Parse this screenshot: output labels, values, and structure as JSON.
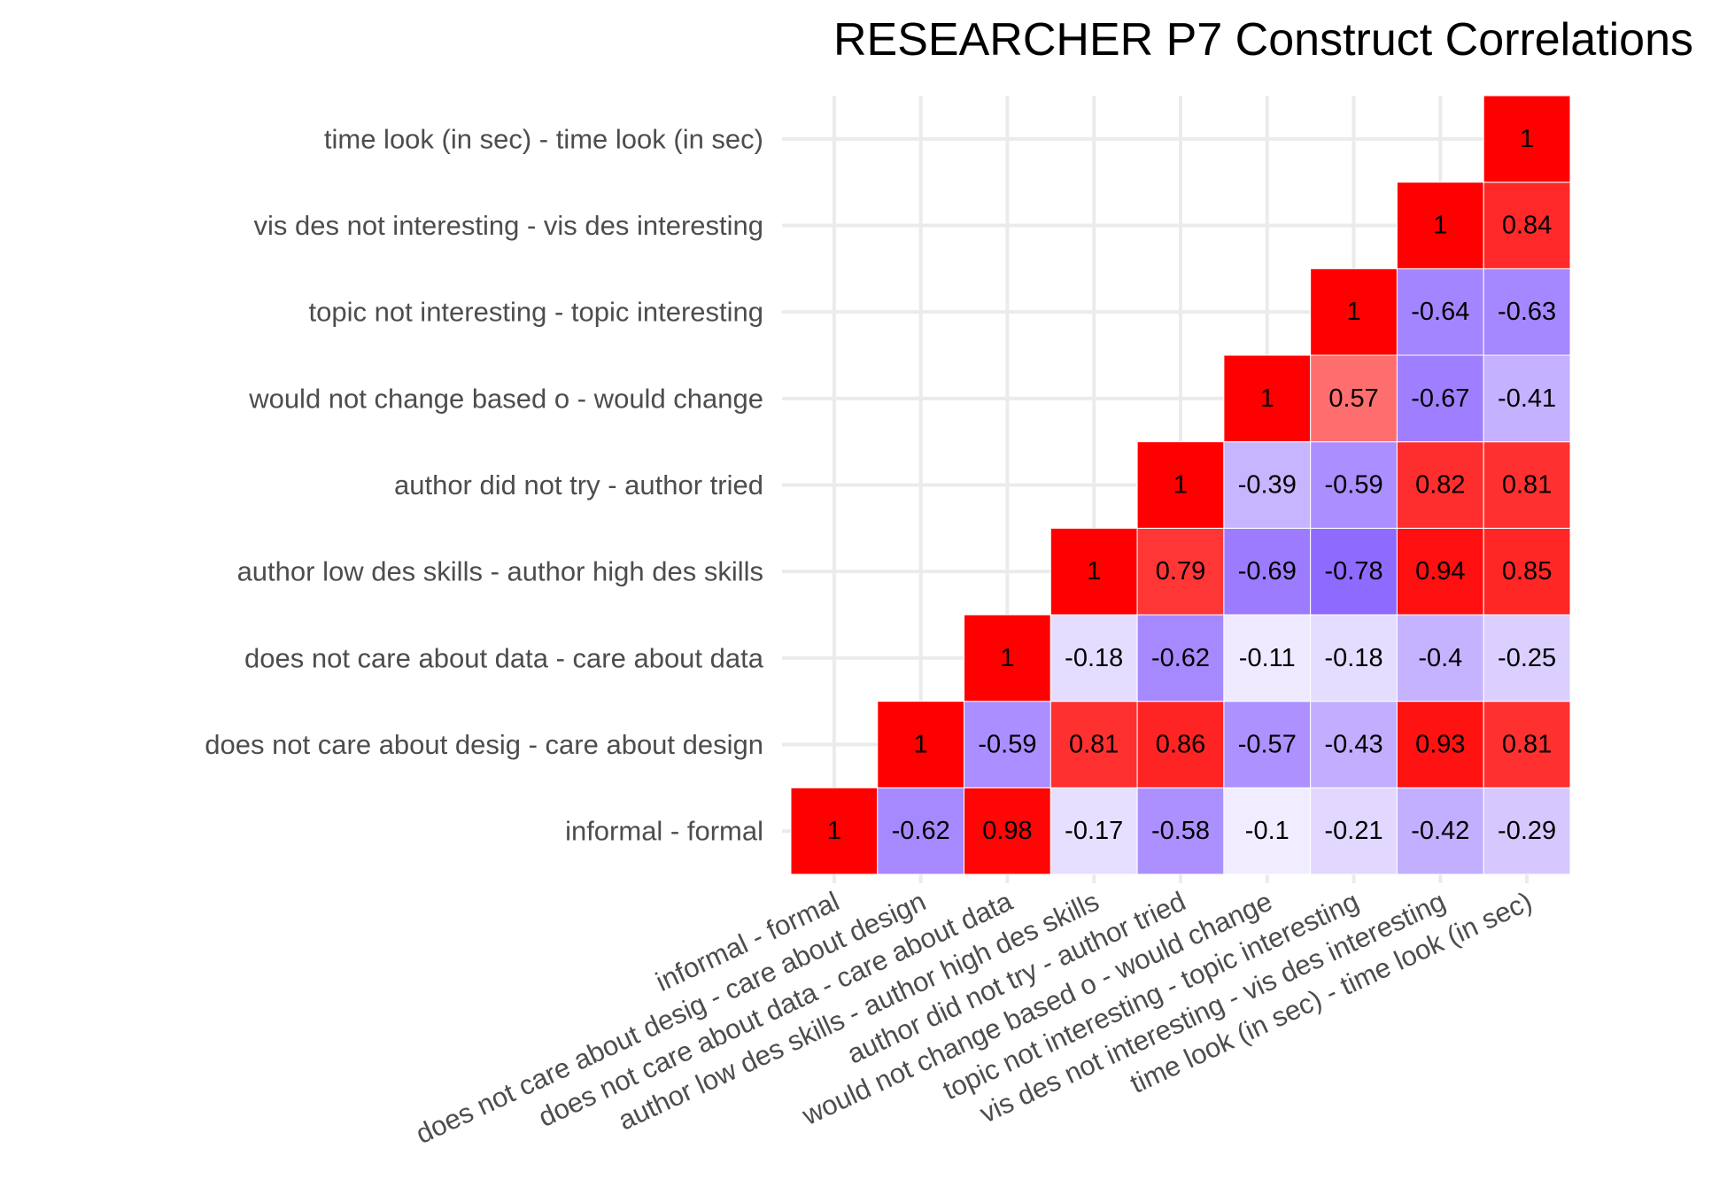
{
  "chart_data": {
    "type": "heatmap",
    "title": "RESEARCHER P7 Construct Correlations",
    "xlabel": "",
    "ylabel": "",
    "categories": [
      "informal - formal",
      "does not care about desig - care about design",
      "does not care about data - care about data",
      "author low des skills  - author high des skills",
      "author did not try - author tried",
      "would not  change based o - would  change",
      "topic not interesting - topic interesting",
      "vis des not interesting - vis des interesting",
      "time look (in sec) - time look (in sec)"
    ],
    "value_range": [
      -1,
      1
    ],
    "colors": {
      "negative": "#7040ff",
      "zero": "#ffffff",
      "positive": "#ff0000",
      "cell_border": "#ffffff"
    },
    "grid": true,
    "legend": "none",
    "cells": [
      {
        "x": 0,
        "y": 0,
        "value": 1,
        "label": "1"
      },
      {
        "x": 1,
        "y": 0,
        "value": -0.62,
        "label": "-0.62"
      },
      {
        "x": 2,
        "y": 0,
        "value": 0.98,
        "label": "0.98"
      },
      {
        "x": 3,
        "y": 0,
        "value": -0.17,
        "label": "-0.17"
      },
      {
        "x": 4,
        "y": 0,
        "value": -0.58,
        "label": "-0.58"
      },
      {
        "x": 5,
        "y": 0,
        "value": -0.1,
        "label": "-0.1"
      },
      {
        "x": 6,
        "y": 0,
        "value": -0.21,
        "label": "-0.21"
      },
      {
        "x": 7,
        "y": 0,
        "value": -0.42,
        "label": "-0.42"
      },
      {
        "x": 8,
        "y": 0,
        "value": -0.29,
        "label": "-0.29"
      },
      {
        "x": 1,
        "y": 1,
        "value": 1,
        "label": "1"
      },
      {
        "x": 2,
        "y": 1,
        "value": -0.59,
        "label": "-0.59"
      },
      {
        "x": 3,
        "y": 1,
        "value": 0.81,
        "label": "0.81"
      },
      {
        "x": 4,
        "y": 1,
        "value": 0.86,
        "label": "0.86"
      },
      {
        "x": 5,
        "y": 1,
        "value": -0.57,
        "label": "-0.57"
      },
      {
        "x": 6,
        "y": 1,
        "value": -0.43,
        "label": "-0.43"
      },
      {
        "x": 7,
        "y": 1,
        "value": 0.93,
        "label": "0.93"
      },
      {
        "x": 8,
        "y": 1,
        "value": 0.81,
        "label": "0.81"
      },
      {
        "x": 2,
        "y": 2,
        "value": 1,
        "label": "1"
      },
      {
        "x": 3,
        "y": 2,
        "value": -0.18,
        "label": "-0.18"
      },
      {
        "x": 4,
        "y": 2,
        "value": -0.62,
        "label": "-0.62"
      },
      {
        "x": 5,
        "y": 2,
        "value": -0.11,
        "label": "-0.11"
      },
      {
        "x": 6,
        "y": 2,
        "value": -0.18,
        "label": "-0.18"
      },
      {
        "x": 7,
        "y": 2,
        "value": -0.4,
        "label": "-0.4"
      },
      {
        "x": 8,
        "y": 2,
        "value": -0.25,
        "label": "-0.25"
      },
      {
        "x": 3,
        "y": 3,
        "value": 1,
        "label": "1"
      },
      {
        "x": 4,
        "y": 3,
        "value": 0.79,
        "label": "0.79"
      },
      {
        "x": 5,
        "y": 3,
        "value": -0.69,
        "label": "-0.69"
      },
      {
        "x": 6,
        "y": 3,
        "value": -0.78,
        "label": "-0.78"
      },
      {
        "x": 7,
        "y": 3,
        "value": 0.94,
        "label": "0.94"
      },
      {
        "x": 8,
        "y": 3,
        "value": 0.85,
        "label": "0.85"
      },
      {
        "x": 4,
        "y": 4,
        "value": 1,
        "label": "1"
      },
      {
        "x": 5,
        "y": 4,
        "value": -0.39,
        "label": "-0.39"
      },
      {
        "x": 6,
        "y": 4,
        "value": -0.59,
        "label": "-0.59"
      },
      {
        "x": 7,
        "y": 4,
        "value": 0.82,
        "label": "0.82"
      },
      {
        "x": 8,
        "y": 4,
        "value": 0.81,
        "label": "0.81"
      },
      {
        "x": 5,
        "y": 5,
        "value": 1,
        "label": "1"
      },
      {
        "x": 6,
        "y": 5,
        "value": 0.57,
        "label": "0.57"
      },
      {
        "x": 7,
        "y": 5,
        "value": -0.67,
        "label": "-0.67"
      },
      {
        "x": 8,
        "y": 5,
        "value": -0.41,
        "label": "-0.41"
      },
      {
        "x": 6,
        "y": 6,
        "value": 1,
        "label": "1"
      },
      {
        "x": 7,
        "y": 6,
        "value": -0.64,
        "label": "-0.64"
      },
      {
        "x": 8,
        "y": 6,
        "value": -0.63,
        "label": "-0.63"
      },
      {
        "x": 7,
        "y": 7,
        "value": 1,
        "label": "1"
      },
      {
        "x": 8,
        "y": 7,
        "value": 0.84,
        "label": "0.84"
      },
      {
        "x": 8,
        "y": 8,
        "value": 1,
        "label": "1"
      }
    ]
  }
}
